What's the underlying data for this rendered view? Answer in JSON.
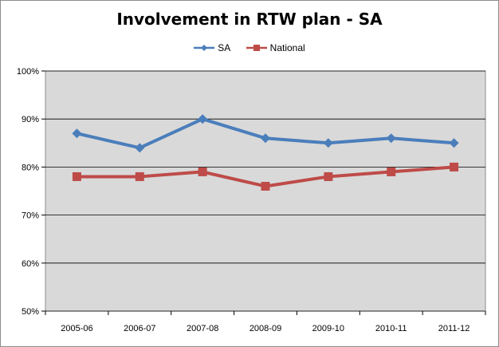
{
  "chart_data": {
    "type": "line",
    "title": "Involvement in RTW plan - SA",
    "categories": [
      "2005-06",
      "2006-07",
      "2007-08",
      "2008-09",
      "2009-10",
      "2010-11",
      "2011-12"
    ],
    "series": [
      {
        "name": "SA",
        "values": [
          87,
          84,
          90,
          86,
          85,
          86,
          85
        ],
        "color": "#4a7ebb",
        "marker": "diamond"
      },
      {
        "name": "National",
        "values": [
          78,
          78,
          79,
          76,
          78,
          79,
          80
        ],
        "color": "#be4b48",
        "marker": "square"
      }
    ],
    "ylim": [
      50,
      100
    ],
    "yticks": [
      50,
      60,
      70,
      80,
      90,
      100
    ],
    "ytick_labels": [
      "50%",
      "60%",
      "70%",
      "80%",
      "90%",
      "100%"
    ],
    "grid": true,
    "legend_position": "top",
    "plot_background": "#d9d9d9"
  }
}
